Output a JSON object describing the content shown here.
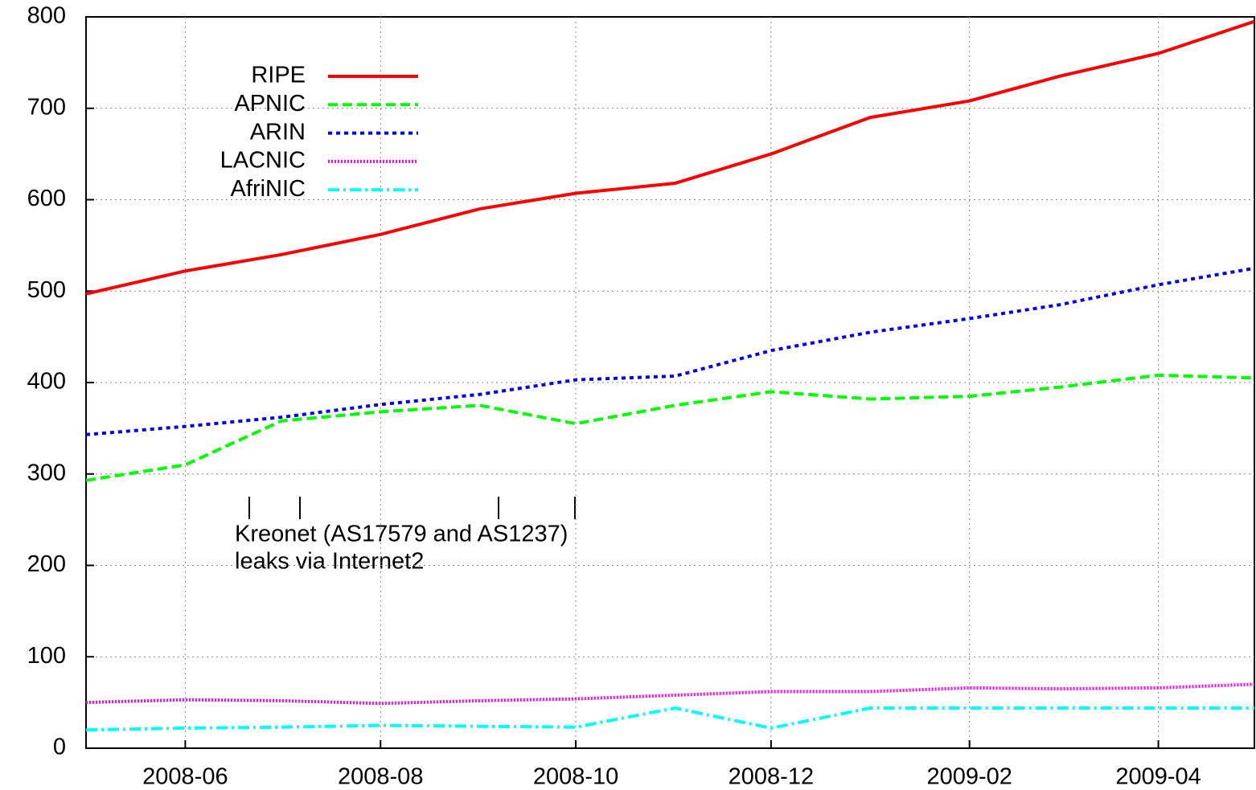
{
  "chart_data": {
    "type": "line",
    "x": [
      "2008-05",
      "2008-06",
      "2008-07",
      "2008-08",
      "2008-09",
      "2008-10",
      "2008-11",
      "2008-12",
      "2009-01",
      "2009-02",
      "2009-03",
      "2009-04",
      "2009-05"
    ],
    "series": [
      {
        "name": "RIPE",
        "color": "#ff0000",
        "dash": "solid",
        "values": [
          497,
          522,
          540,
          562,
          590,
          607,
          618,
          650,
          690,
          708,
          735,
          760,
          795
        ]
      },
      {
        "name": "APNIC",
        "color": "#00ff00",
        "dash": "dashed",
        "values": [
          293,
          310,
          358,
          368,
          375,
          355,
          375,
          390,
          382,
          385,
          395,
          408,
          405
        ]
      },
      {
        "name": "ARIN",
        "color": "#0000ff",
        "dash": "dotted",
        "values": [
          343,
          352,
          362,
          376,
          387,
          403,
          407,
          435,
          455,
          470,
          485,
          507,
          525
        ]
      },
      {
        "name": "LACNIC",
        "color": "#ff00ff",
        "dash": "fine-dotted",
        "values": [
          50,
          53,
          52,
          49,
          52,
          54,
          58,
          62,
          62,
          66,
          65,
          66,
          70
        ]
      },
      {
        "name": "AfriNIC",
        "color": "#00ffff",
        "dash": "dash-dot",
        "values": [
          20,
          22,
          23,
          25,
          24,
          23,
          44,
          22,
          44,
          44,
          44,
          44,
          44
        ]
      }
    ],
    "xlim": [
      "2008-05",
      "2009-05"
    ],
    "xticks": [
      "2008-06",
      "2008-08",
      "2008-10",
      "2008-12",
      "2009-02",
      "2009-04"
    ],
    "ylim": [
      0,
      800
    ],
    "yticks": [
      0,
      100,
      200,
      300,
      400,
      500,
      600,
      700,
      800
    ],
    "grid": true,
    "legend": "upper-left",
    "annotations": [
      "Kreonet (AS17579 and AS1237)",
      "leaks via Internet2"
    ]
  }
}
